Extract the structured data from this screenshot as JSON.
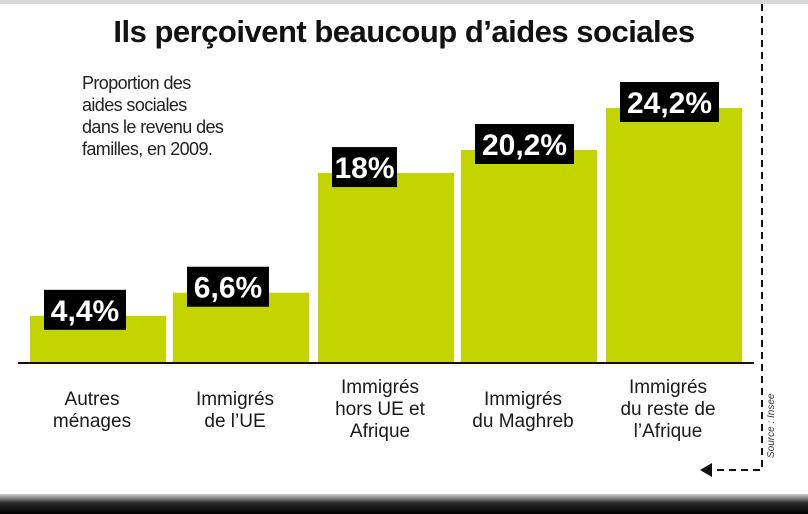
{
  "colors": {
    "bar": "#c4d400",
    "label_bg": "#000000",
    "label_text": "#ffffff",
    "axis": "#111111"
  },
  "source": "Source : Insee",
  "chart_data": {
    "type": "bar",
    "title": "Ils perçoivent beaucoup d’aides sociales",
    "subtitle_lines": [
      "Proportion des",
      "aides sociales",
      "dans le revenu des",
      "familles, en 2009."
    ],
    "categories": [
      [
        "Autres",
        "ménages"
      ],
      [
        "Immigrés",
        "de l’UE"
      ],
      [
        "Immigrés",
        "hors UE et",
        "Afrique"
      ],
      [
        "Immigrés",
        "du Maghreb"
      ],
      [
        "Immigrés",
        "du reste de",
        "l’Afrique"
      ]
    ],
    "values": [
      4.4,
      6.6,
      18,
      20.2,
      24.2
    ],
    "value_labels": [
      "4,4%",
      "6,6%",
      "18%",
      "20,2%",
      "24,2%"
    ],
    "unit": "%",
    "ylim": [
      0,
      24.2
    ],
    "grid": false,
    "legend": "none"
  }
}
